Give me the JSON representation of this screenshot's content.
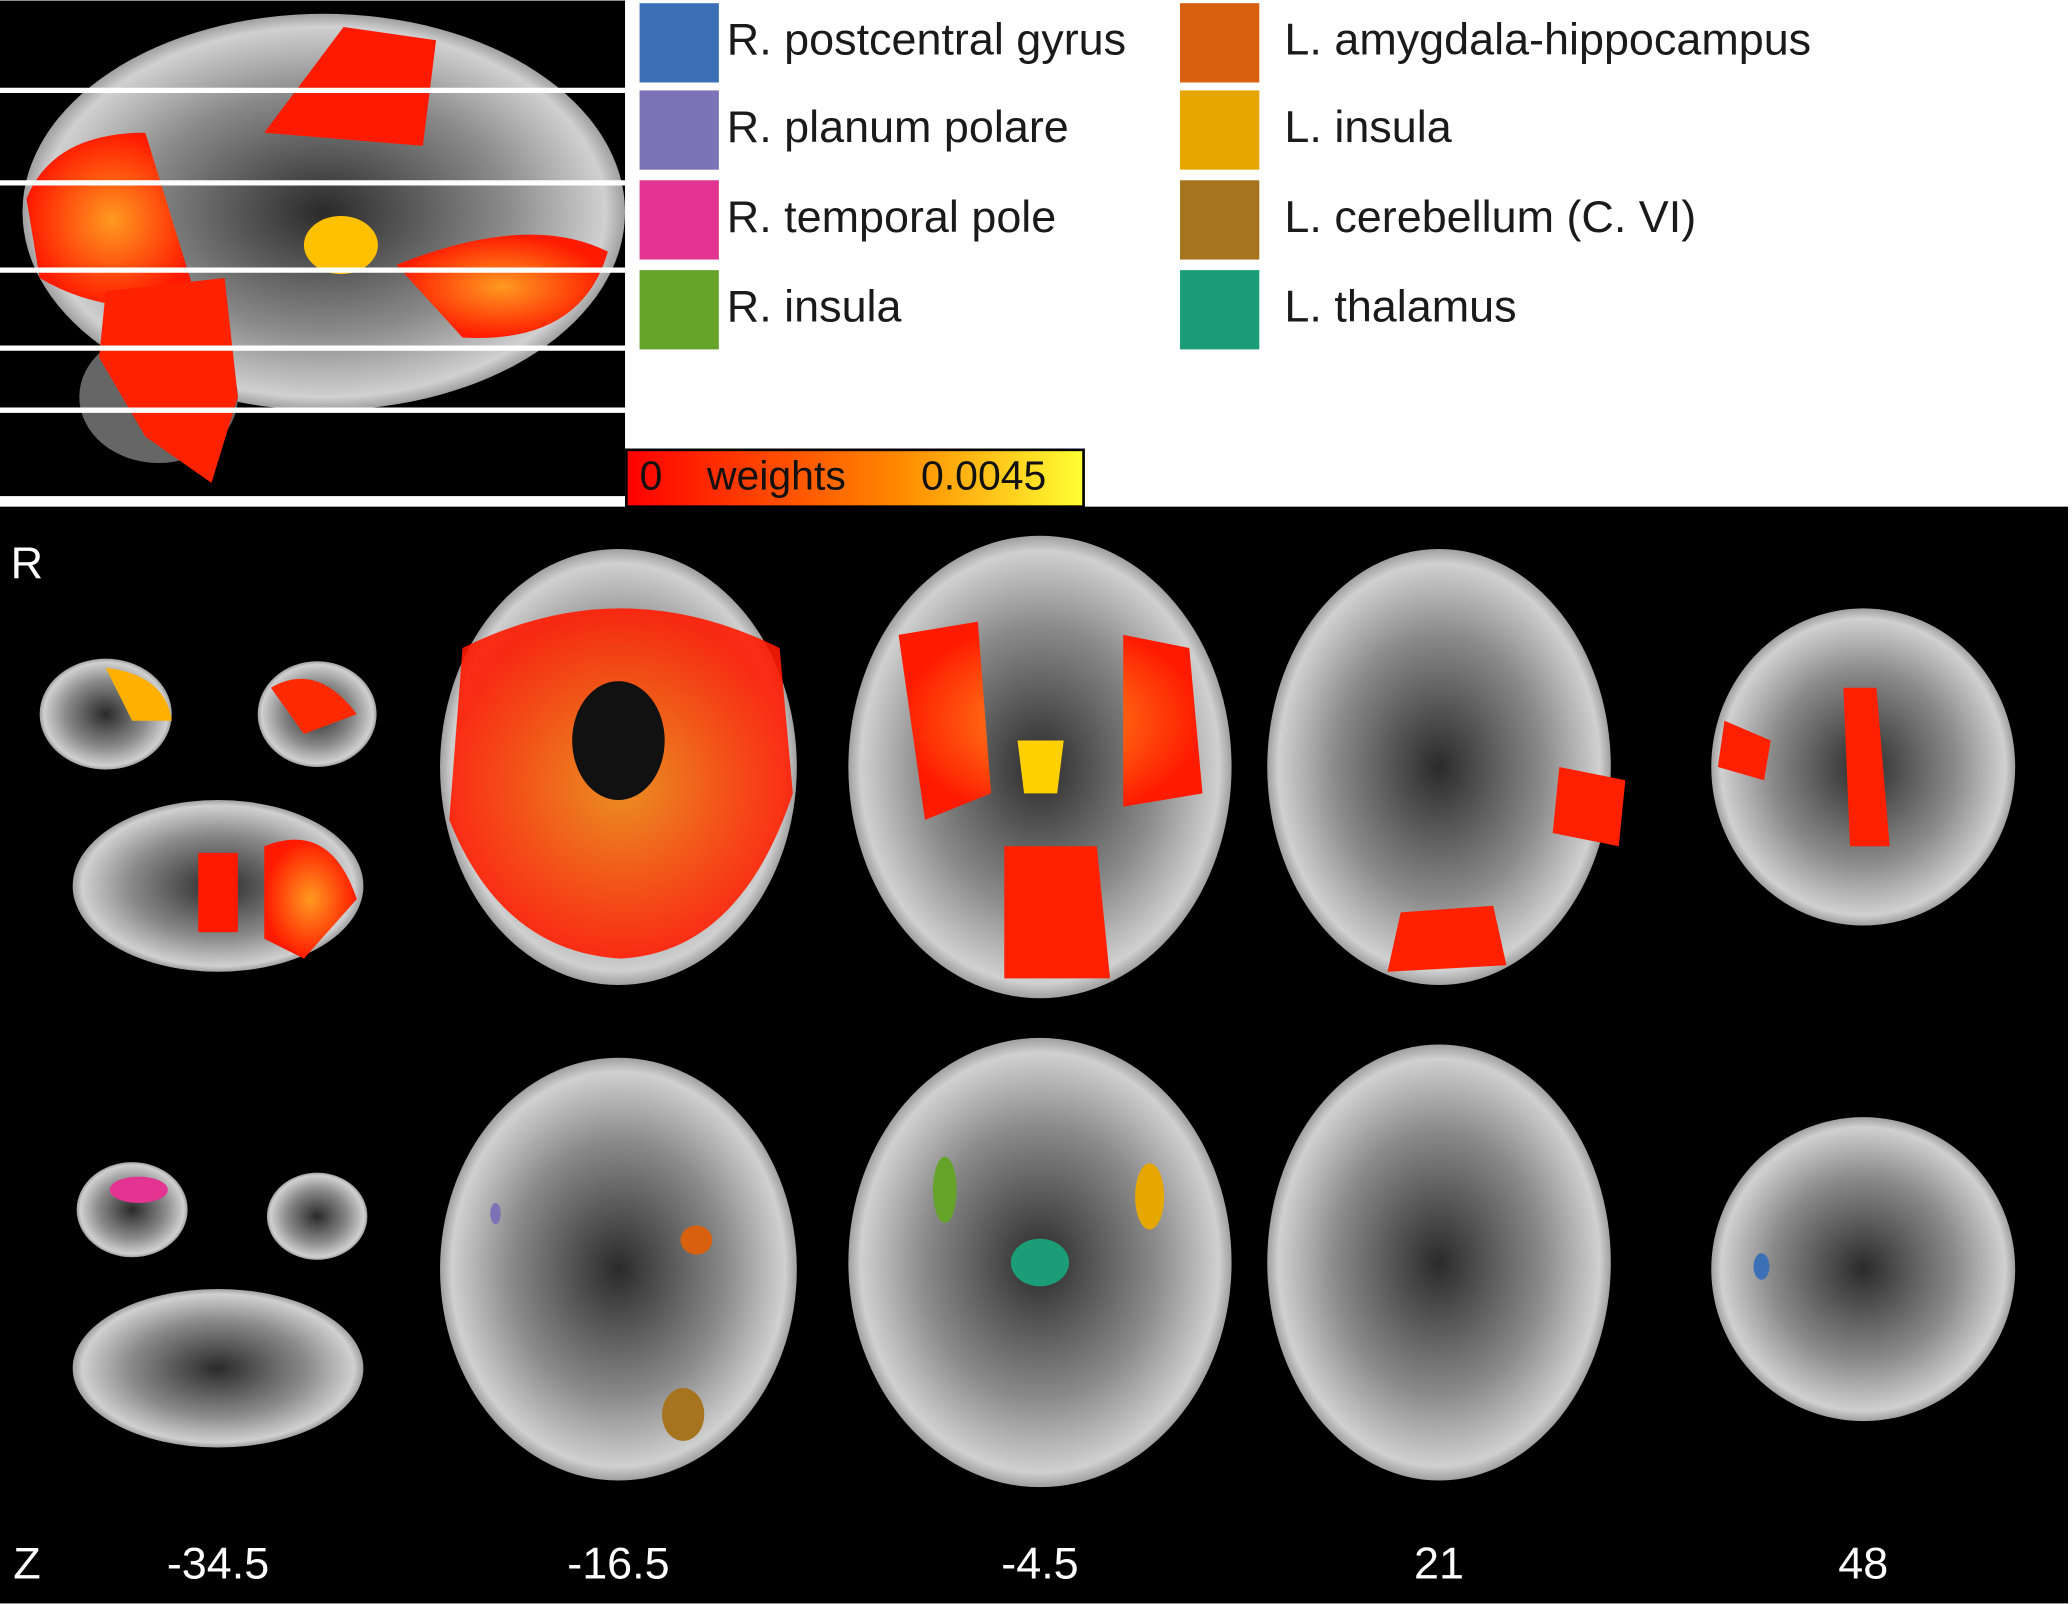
{
  "legend": [
    {
      "label": "R. postcentral gyrus",
      "color": "#3b6fb6"
    },
    {
      "label": "R. planum polare",
      "color": "#7c73b6"
    },
    {
      "label": "R. temporal pole",
      "color": "#e23490"
    },
    {
      "label": "R. insula",
      "color": "#66a32b"
    },
    {
      "label": "L. amygdala-hippocampus",
      "color": "#d9600f"
    },
    {
      "label": "L. insula",
      "color": "#e6a700"
    },
    {
      "label": "L. cerebellum (C. VI)",
      "color": "#a6731f"
    },
    {
      "label": "L. thalamus",
      "color": "#1b9e77"
    }
  ],
  "colorbar": {
    "min": "0",
    "label": "weights",
    "max": "0.0045"
  },
  "orientation": {
    "top": "R",
    "bottom": "Z"
  },
  "slices": [
    "-34.5",
    "-16.5",
    "-4.5",
    "21",
    "48"
  ]
}
